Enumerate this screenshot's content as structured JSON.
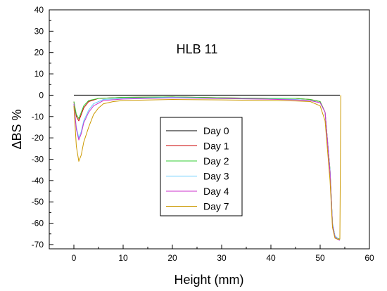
{
  "chart_data": {
    "type": "line",
    "title": "HLB 11",
    "xlabel": "Height (mm)",
    "ylabel": "ΔBS %",
    "xlim": [
      -5,
      60
    ],
    "ylim": [
      -72,
      40
    ],
    "xticks": [
      0,
      10,
      20,
      30,
      40,
      50,
      60
    ],
    "yticks": [
      40,
      30,
      20,
      10,
      0,
      -10,
      -20,
      -30,
      -40,
      -50,
      -60,
      -70
    ],
    "grid": false,
    "legend_position": "center",
    "series": [
      {
        "name": "Day 0",
        "color": "#000000",
        "x": [
          0,
          5,
          10,
          20,
          30,
          40,
          50,
          54
        ],
        "y": [
          0,
          0,
          0,
          0,
          0,
          0,
          0,
          0
        ]
      },
      {
        "name": "Day 1",
        "color": "#cc0000",
        "x": [
          0,
          0.5,
          1,
          1.5,
          2,
          3,
          5,
          10,
          20,
          30,
          40,
          45,
          48,
          50,
          51,
          52,
          52.5,
          53,
          53.5,
          54
        ],
        "y": [
          -3,
          -10,
          -12,
          -9,
          -6,
          -3,
          -1.5,
          -1,
          -0.8,
          -1.2,
          -1.5,
          -1.5,
          -2,
          -3,
          -8,
          -35,
          -60,
          -66,
          -67,
          -67.5
        ]
      },
      {
        "name": "Day 2",
        "color": "#33cc33",
        "x": [
          0,
          0.5,
          1,
          1.5,
          2,
          3,
          5,
          10,
          20,
          30,
          40,
          45,
          48,
          50,
          51,
          52,
          52.5,
          53,
          53.5,
          54
        ],
        "y": [
          -3,
          -9,
          -11,
          -8,
          -5,
          -2.5,
          -1.5,
          -1,
          -0.8,
          -1.2,
          -1.5,
          -1.5,
          -2,
          -3,
          -8,
          -35,
          -60,
          -66,
          -67,
          -67.5
        ]
      },
      {
        "name": "Day 3",
        "color": "#66ccff",
        "x": [
          0,
          0.5,
          1,
          1.5,
          2,
          3,
          4,
          6,
          10,
          20,
          30,
          40,
          45,
          48,
          50,
          51,
          52,
          52.5,
          53,
          53.5,
          54
        ],
        "y": [
          -4,
          -15,
          -20,
          -17,
          -12,
          -7,
          -4,
          -2,
          -1.5,
          -1,
          -1.5,
          -1.8,
          -2,
          -2.5,
          -3.5,
          -8,
          -35,
          -60,
          -66,
          -67,
          -68
        ]
      },
      {
        "name": "Day 4",
        "color": "#cc33cc",
        "x": [
          0,
          0.5,
          1,
          1.5,
          2,
          3,
          4,
          6,
          10,
          20,
          30,
          40,
          45,
          48,
          50,
          51,
          52,
          52.5,
          53,
          53.5,
          54
        ],
        "y": [
          -4,
          -16,
          -21,
          -18,
          -13,
          -8,
          -5,
          -2.5,
          -1.8,
          -1.2,
          -1.6,
          -1.9,
          -2.2,
          -2.6,
          -3.5,
          -8,
          -36,
          -61,
          -66.5,
          -67.5,
          -68
        ]
      },
      {
        "name": "Day 7",
        "color": "#cc9900",
        "x": [
          0,
          0.5,
          1,
          1.5,
          2,
          3,
          4,
          5,
          6,
          8,
          10,
          20,
          30,
          40,
          45,
          48,
          50,
          51,
          52,
          52.5,
          53,
          53.5,
          54,
          54.2
        ],
        "y": [
          -5,
          -24,
          -31,
          -28,
          -22,
          -15,
          -9,
          -6,
          -4,
          -3,
          -2.5,
          -2,
          -2.2,
          -2.5,
          -2.7,
          -3,
          -5,
          -12,
          -40,
          -62,
          -67,
          -67.5,
          -67.5,
          0
        ]
      }
    ]
  }
}
